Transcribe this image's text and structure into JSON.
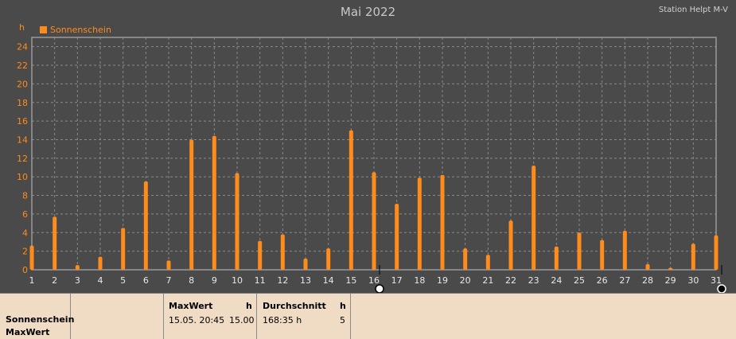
{
  "header": {
    "title": "Mai 2022",
    "station": "Station Helpt M-V",
    "unit": "h",
    "legend_label": "Sonnenschein"
  },
  "colors": {
    "background": "#4a4a4a",
    "bar": "#ff8c1a",
    "grid": "#8a8a8a",
    "plot_border": "#9a9a9a",
    "info_panel": "#f0dcc4"
  },
  "chart_data": {
    "type": "bar",
    "title": "Mai 2022",
    "ylabel": "h",
    "xlabel": "",
    "categories": [
      "1",
      "2",
      "3",
      "4",
      "5",
      "6",
      "7",
      "8",
      "9",
      "10",
      "11",
      "12",
      "13",
      "14",
      "15",
      "16",
      "17",
      "18",
      "19",
      "20",
      "21",
      "22",
      "23",
      "24",
      "25",
      "26",
      "27",
      "28",
      "29",
      "30",
      "31"
    ],
    "series": [
      {
        "name": "Sonnenschein",
        "values": [
          2.6,
          5.7,
          0.5,
          1.4,
          4.5,
          9.5,
          1.0,
          14.0,
          14.4,
          10.4,
          3.1,
          3.8,
          1.2,
          2.3,
          15.0,
          10.5,
          7.1,
          9.9,
          10.2,
          2.3,
          1.6,
          5.3,
          11.2,
          2.5,
          4.0,
          3.2,
          4.2,
          0.6,
          0.2,
          2.8,
          3.7
        ]
      }
    ],
    "ylim": [
      0,
      25
    ],
    "yticks": [
      0,
      2,
      4,
      6,
      8,
      10,
      12,
      14,
      16,
      18,
      20,
      22,
      24
    ],
    "grid": true,
    "legend_position": "top-left",
    "markers": [
      {
        "day": "16",
        "style": "white-circle"
      },
      {
        "day": "31",
        "style": "black-circle"
      }
    ]
  },
  "info": {
    "row_label_1": "Sonnenschein",
    "row_label_2": "MaxWert",
    "max_header": "MaxWert",
    "max_unit": "h",
    "max_datetime": "15.05.  20:45",
    "max_value": "15.00",
    "avg_header": "Durchschnitt",
    "avg_unit": "h",
    "avg_value": "168:35 h",
    "avg_count": "5"
  }
}
